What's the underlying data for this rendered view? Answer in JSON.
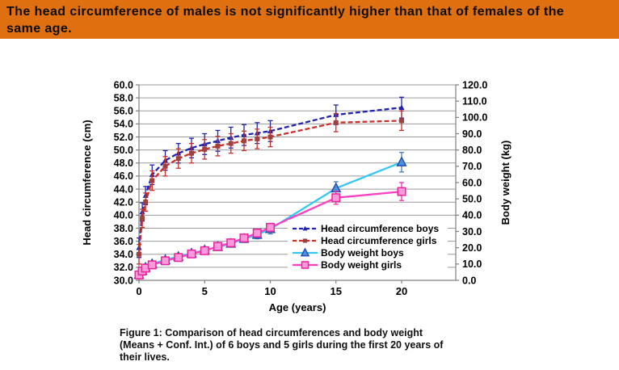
{
  "header": {
    "bg_color": "#E0700F",
    "text_color": "#0D0D0D",
    "lines": [
      "The head circumference of males is not significantly higher than that of females of the",
      "same age."
    ]
  },
  "caption": {
    "lines": [
      "Figure 1: Comparison of head circumferences and body weight",
      "(Means + Conf. Int.) of 6 boys and 5 girls during the first 20 years of",
      "their lives."
    ]
  },
  "chart_data": {
    "type": "line",
    "title": "",
    "grid": "horizontal",
    "legend_position": "inside-right-middle",
    "colors": {
      "gridline": "#9A9A9A",
      "axis": "#808080",
      "legend_bg": "#FFFFFF"
    },
    "x_axis": {
      "title": "Age (years)",
      "range": [
        0,
        24.1
      ],
      "ticks": [
        0,
        5,
        10,
        15,
        20
      ],
      "tick_labels": [
        "0",
        "5",
        "10",
        "15",
        "20"
      ]
    },
    "left_axis": {
      "title": "Head circumference (cm)",
      "range": [
        30,
        60
      ],
      "tick_step": 2,
      "tick_labels": [
        "60.0",
        "58.0",
        "56.0",
        "54.0",
        "52.0",
        "50.0",
        "48.0",
        "46.0",
        "44.0",
        "42.0",
        "40.0",
        "38.0",
        "36.0",
        "34.0",
        "32.0",
        "30.0"
      ]
    },
    "right_axis": {
      "title": "Body weight (kg)",
      "range": [
        0,
        120
      ],
      "tick_step": 10,
      "tick_labels": [
        "120.0",
        "110.0",
        "100.0",
        "90.0",
        "80.0",
        "70.0",
        "60.0",
        "50.0",
        "40.0",
        "30.0",
        "20.0",
        "10.0",
        "0.0"
      ]
    },
    "x": [
      0,
      0.25,
      0.5,
      1,
      2,
      3,
      4,
      5,
      6,
      7,
      8,
      9,
      10,
      15,
      20
    ],
    "series": [
      {
        "id": "head-circumference-boys",
        "name": "Head circumference boys",
        "axis": "left",
        "style": "dashed",
        "color": "#2222AC",
        "err_color": "#2222AC",
        "marker": {
          "shape": "triangle",
          "size": 7,
          "fill": "#2222AC",
          "stroke": "none",
          "stroke_width": 0
        },
        "values": [
          35.0,
          40.5,
          43.0,
          46.2,
          48.4,
          49.5,
          50.3,
          50.9,
          51.4,
          51.9,
          52.3,
          52.6,
          52.9,
          55.4,
          56.5
        ],
        "err": [
          1.5,
          1.4,
          1.4,
          1.5,
          1.5,
          1.5,
          1.5,
          1.6,
          1.6,
          1.6,
          1.6,
          1.6,
          1.6,
          1.5,
          1.6
        ]
      },
      {
        "id": "head-circumference-girls",
        "name": "Head circumference girls",
        "axis": "left",
        "style": "dashed",
        "color": "#C9302C",
        "err_color": "#C9302C",
        "marker": {
          "shape": "square",
          "size": 6,
          "fill": "#9E4141",
          "stroke": "none",
          "stroke_width": 0
        },
        "values": [
          34.0,
          39.5,
          42.0,
          45.3,
          47.5,
          48.7,
          49.5,
          50.1,
          50.6,
          51.0,
          51.4,
          51.7,
          52.0,
          54.2,
          54.5
        ],
        "err": [
          1.5,
          1.4,
          1.4,
          1.5,
          1.5,
          1.5,
          1.5,
          1.5,
          1.5,
          1.5,
          1.5,
          1.5,
          1.5,
          1.4,
          1.5
        ]
      },
      {
        "id": "body-weight-boys",
        "name": "Body weight boys",
        "axis": "right",
        "style": "solid",
        "color": "#35C6F4",
        "err_color": "#4A7EB5",
        "marker": {
          "shape": "triangle",
          "size": 11,
          "fill": "#4A90DC",
          "stroke": "#2244AA",
          "stroke_width": 1.3
        },
        "values": [
          3.5,
          6.0,
          7.8,
          10.0,
          12.5,
          14.5,
          16.5,
          18.5,
          20.5,
          22.5,
          25.5,
          28.0,
          31.5,
          56.5,
          72.5
        ],
        "err": [
          0.5,
          0.6,
          0.8,
          1.0,
          1.2,
          1.3,
          1.5,
          1.6,
          1.8,
          2.0,
          2.2,
          2.5,
          3.0,
          4.0,
          6.0
        ]
      },
      {
        "id": "body-weight-girls",
        "name": "Body weight girls",
        "axis": "right",
        "style": "solid",
        "color": "#FF3FC3",
        "err_color": "#EE2FB0",
        "marker": {
          "shape": "square",
          "size": 9.5,
          "fill": "#FB9ADB",
          "stroke": "#E8249E",
          "stroke_width": 1.5
        },
        "values": [
          3.3,
          5.7,
          7.5,
          9.5,
          12.0,
          14.0,
          16.2,
          18.2,
          20.8,
          23.0,
          26.0,
          29.0,
          32.5,
          50.7,
          54.5
        ],
        "err": [
          0.4,
          0.5,
          0.7,
          0.9,
          1.0,
          1.2,
          1.3,
          1.5,
          1.6,
          1.8,
          2.0,
          2.2,
          2.5,
          4.0,
          5.5
        ]
      }
    ]
  }
}
